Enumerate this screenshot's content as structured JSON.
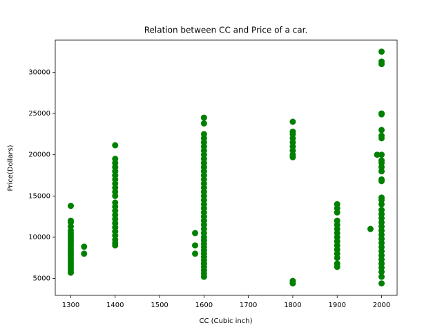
{
  "chart_data": {
    "type": "scatter",
    "title": "Relation between CC and Price of a car.",
    "x_label": "CC (Cubic inch)",
    "y_label": "Price(Dollars)",
    "color": "#008000",
    "xlim": [
      1265,
      2035
    ],
    "xticks": [
      1300,
      1400,
      1500,
      1600,
      1700,
      1800,
      1900,
      2000
    ],
    "ylim": [
      2950,
      33900
    ],
    "yticks": [
      5000,
      10000,
      15000,
      20000,
      25000,
      30000
    ],
    "x": [
      1300,
      1300,
      1300,
      1300,
      1300,
      1300,
      1300,
      1300,
      1300,
      1300,
      1300,
      1300,
      1300,
      1300,
      1300,
      1300,
      1300,
      1300,
      1300,
      1300,
      1300,
      1300,
      1330,
      1330,
      1400,
      1400,
      1400,
      1400,
      1400,
      1400,
      1400,
      1400,
      1400,
      1400,
      1400,
      1400,
      1400,
      1400,
      1400,
      1400,
      1400,
      1400,
      1400,
      1400,
      1400,
      1400,
      1400,
      1600,
      1600,
      1600,
      1600,
      1600,
      1600,
      1600,
      1600,
      1600,
      1600,
      1600,
      1600,
      1600,
      1600,
      1600,
      1600,
      1600,
      1600,
      1600,
      1600,
      1600,
      1600,
      1600,
      1600,
      1600,
      1600,
      1600,
      1600,
      1600,
      1600,
      1600,
      1600,
      1600,
      1600,
      1600,
      1600,
      1600,
      1600,
      1600,
      1600,
      1580,
      1580,
      1580,
      1800,
      1800,
      1800,
      1800,
      1800,
      1800,
      1800,
      1800,
      1800,
      1800,
      1800,
      1900,
      1900,
      1900,
      1900,
      1900,
      1900,
      1900,
      1900,
      1900,
      1900,
      1900,
      1900,
      1900,
      1900,
      1900,
      1975,
      1990,
      2000,
      2000,
      2000,
      2000,
      2000,
      2000,
      2000,
      2000,
      2000,
      2000,
      2000,
      2000,
      2000,
      2000,
      2000,
      2000,
      2000,
      2000,
      2000,
      2000,
      2000,
      2000,
      2000,
      2000,
      2000,
      2000,
      2000,
      2000,
      2000,
      2000,
      2000,
      2000,
      2000,
      2000,
      2000,
      2000
    ],
    "values": [
      5700,
      6000,
      6300,
      6600,
      6900,
      7200,
      7500,
      7800,
      8100,
      8400,
      8700,
      9000,
      9300,
      9600,
      9900,
      10200,
      10500,
      10800,
      11300,
      11800,
      12000,
      13800,
      8000,
      8850,
      9000,
      9300,
      9700,
      10200,
      10700,
      11200,
      11700,
      12200,
      12700,
      13200,
      13700,
      14200,
      15000,
      15500,
      16000,
      16500,
      17000,
      17500,
      18000,
      18500,
      19000,
      19500,
      21150,
      5200,
      5600,
      6000,
      6400,
      6800,
      7200,
      7600,
      8000,
      8400,
      8800,
      9200,
      9600,
      10000,
      10500,
      11000,
      11500,
      12000,
      12500,
      13000,
      13500,
      14000,
      14500,
      15000,
      15500,
      16000,
      16500,
      17000,
      17500,
      18000,
      18500,
      19000,
      19500,
      20000,
      20500,
      21000,
      21500,
      22000,
      22500,
      23800,
      24500,
      10500,
      9000,
      8000,
      4400,
      4700,
      19700,
      20000,
      20500,
      21000,
      21500,
      22000,
      22500,
      22800,
      24000,
      6400,
      6800,
      7500,
      8000,
      8500,
      9000,
      9500,
      10000,
      10500,
      11000,
      11500,
      12000,
      13000,
      13500,
      14000,
      11000,
      20000,
      4400,
      5200,
      5800,
      6300,
      6800,
      7300,
      7800,
      8300,
      8800,
      9300,
      9800,
      10300,
      10800,
      11300,
      11800,
      12300,
      12800,
      13300,
      14000,
      14500,
      14800,
      16800,
      17000,
      18000,
      18500,
      19000,
      19300,
      20000,
      22000,
      22300,
      23000,
      24900,
      25000,
      31000,
      31300,
      32500
    ]
  }
}
